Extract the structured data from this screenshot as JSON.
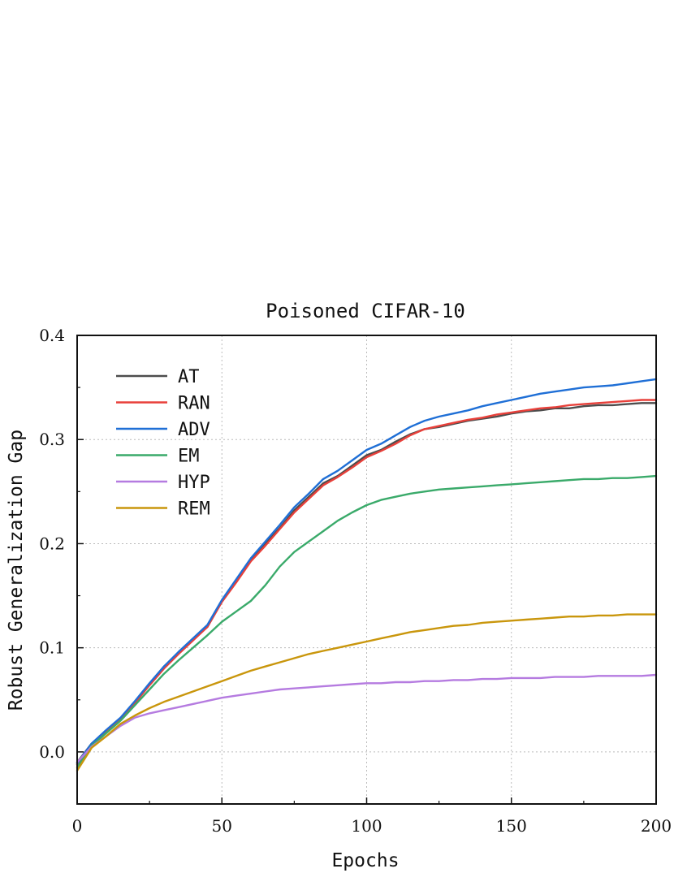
{
  "chart_data": {
    "type": "line",
    "title": "Poisoned CIFAR-10",
    "xlabel": "Epochs",
    "ylabel": "Robust Generalization Gap",
    "xlim": [
      0,
      200
    ],
    "ylim": [
      -0.05,
      0.4
    ],
    "xticks": [
      0,
      50,
      100,
      150,
      200
    ],
    "xtick_labels": [
      "0",
      "50",
      "100",
      "150",
      "200"
    ],
    "yticks": [
      0.0,
      0.1,
      0.2,
      0.3,
      0.4
    ],
    "ytick_labels": [
      "0.0",
      "0.1",
      "0.2",
      "0.3",
      "0.4"
    ],
    "grid": true,
    "legend_position": "top-left",
    "x": [
      0,
      5,
      10,
      15,
      20,
      25,
      30,
      35,
      40,
      45,
      50,
      55,
      60,
      65,
      70,
      75,
      80,
      85,
      90,
      95,
      100,
      105,
      110,
      115,
      120,
      125,
      130,
      135,
      140,
      145,
      150,
      155,
      160,
      165,
      170,
      175,
      180,
      185,
      190,
      195,
      200
    ],
    "series": [
      {
        "name": "AT",
        "color": "#4d4d4d",
        "values": [
          -0.01,
          0.008,
          0.02,
          0.032,
          0.048,
          0.065,
          0.082,
          0.095,
          0.108,
          0.12,
          0.145,
          0.165,
          0.185,
          0.2,
          0.215,
          0.232,
          0.245,
          0.258,
          0.265,
          0.275,
          0.285,
          0.29,
          0.298,
          0.305,
          0.31,
          0.312,
          0.315,
          0.318,
          0.32,
          0.322,
          0.325,
          0.327,
          0.328,
          0.33,
          0.33,
          0.332,
          0.333,
          0.333,
          0.334,
          0.335,
          0.335
        ]
      },
      {
        "name": "RAN",
        "color": "#e8403a",
        "values": [
          -0.012,
          0.007,
          0.02,
          0.031,
          0.047,
          0.064,
          0.08,
          0.094,
          0.107,
          0.12,
          0.144,
          0.163,
          0.183,
          0.198,
          0.214,
          0.23,
          0.243,
          0.256,
          0.264,
          0.273,
          0.283,
          0.289,
          0.296,
          0.304,
          0.31,
          0.313,
          0.316,
          0.319,
          0.321,
          0.324,
          0.326,
          0.328,
          0.33,
          0.331,
          0.333,
          0.334,
          0.335,
          0.336,
          0.337,
          0.338,
          0.338
        ]
      },
      {
        "name": "ADV",
        "color": "#1f6fd6",
        "values": [
          -0.011,
          0.008,
          0.021,
          0.033,
          0.049,
          0.066,
          0.082,
          0.096,
          0.109,
          0.122,
          0.146,
          0.166,
          0.186,
          0.202,
          0.218,
          0.235,
          0.248,
          0.262,
          0.27,
          0.28,
          0.29,
          0.296,
          0.304,
          0.312,
          0.318,
          0.322,
          0.325,
          0.328,
          0.332,
          0.335,
          0.338,
          0.341,
          0.344,
          0.346,
          0.348,
          0.35,
          0.351,
          0.352,
          0.354,
          0.356,
          0.358
        ]
      },
      {
        "name": "EM",
        "color": "#3aaa6a",
        "values": [
          -0.015,
          0.006,
          0.018,
          0.03,
          0.045,
          0.06,
          0.075,
          0.088,
          0.1,
          0.112,
          0.125,
          0.135,
          0.145,
          0.16,
          0.178,
          0.192,
          0.202,
          0.212,
          0.222,
          0.23,
          0.237,
          0.242,
          0.245,
          0.248,
          0.25,
          0.252,
          0.253,
          0.254,
          0.255,
          0.256,
          0.257,
          0.258,
          0.259,
          0.26,
          0.261,
          0.262,
          0.262,
          0.263,
          0.263,
          0.264,
          0.265
        ]
      },
      {
        "name": "HYP",
        "color": "#b57be0",
        "values": [
          -0.01,
          0.005,
          0.015,
          0.025,
          0.033,
          0.037,
          0.04,
          0.043,
          0.046,
          0.049,
          0.052,
          0.054,
          0.056,
          0.058,
          0.06,
          0.061,
          0.062,
          0.063,
          0.064,
          0.065,
          0.066,
          0.066,
          0.067,
          0.067,
          0.068,
          0.068,
          0.069,
          0.069,
          0.07,
          0.07,
          0.071,
          0.071,
          0.071,
          0.072,
          0.072,
          0.072,
          0.073,
          0.073,
          0.073,
          0.073,
          0.074
        ]
      },
      {
        "name": "REM",
        "color": "#c9960c",
        "values": [
          -0.018,
          0.004,
          0.015,
          0.027,
          0.035,
          0.042,
          0.048,
          0.053,
          0.058,
          0.063,
          0.068,
          0.073,
          0.078,
          0.082,
          0.086,
          0.09,
          0.094,
          0.097,
          0.1,
          0.103,
          0.106,
          0.109,
          0.112,
          0.115,
          0.117,
          0.119,
          0.121,
          0.122,
          0.124,
          0.125,
          0.126,
          0.127,
          0.128,
          0.129,
          0.13,
          0.13,
          0.131,
          0.131,
          0.132,
          0.132,
          0.132
        ]
      }
    ]
  }
}
